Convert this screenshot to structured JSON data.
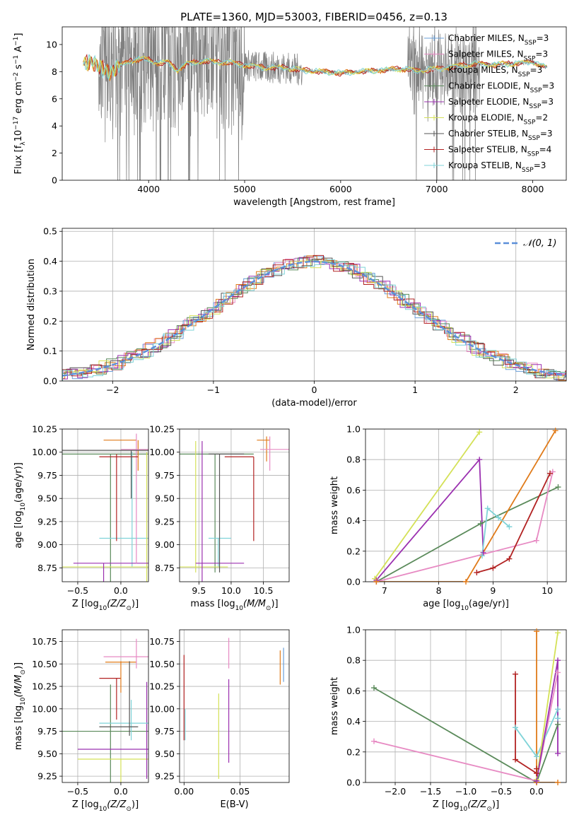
{
  "figure_title": "PLATE=1360, MJD=53003, FIBERID=0456, z=0.13",
  "colors": {
    "Chabrier MILES": "#6a9fd8",
    "Salpeter MILES": "#e78ac3",
    "Kroupa MILES": "#c0c0c0",
    "Chabrier ELODIE": "#5a8a5a",
    "Salpeter ELODIE": "#9b30b0",
    "Kroupa ELODIE": "#d4e157",
    "Chabrier STELIB": "#555555",
    "Salpeter STELIB": "#b22222",
    "Kroupa STELIB": "#7fd3d8",
    "orange": "#e07b1a",
    "data": "#808080",
    "normal": "#5b8fd9"
  },
  "chart_data": [
    {
      "id": "spectrum",
      "type": "line",
      "title": "PLATE=1360, MJD=53003, FIBERID=0456, z=0.13",
      "xlabel": "wavelength [Angstrom, rest frame]",
      "ylabel_parts": [
        "Flux [f",
        "λ",
        "10",
        "−17",
        " erg cm",
        "−2",
        " s",
        "−1",
        " A",
        "−1",
        "]"
      ],
      "xlim": [
        3100,
        8350
      ],
      "ylim": [
        0,
        11.3
      ],
      "xticks": [
        4000,
        5000,
        6000,
        7000,
        8000
      ],
      "yticks": [
        0,
        2,
        4,
        6,
        8,
        10
      ],
      "legend_position": "top-right",
      "legend": [
        {
          "label": "Chabrier MILES, N",
          "sub": "SSP",
          "eq": "=3",
          "color_key": "Chabrier MILES"
        },
        {
          "label": "Salpeter MILES, N",
          "sub": "SSP",
          "eq": "=3",
          "color_key": "Salpeter MILES"
        },
        {
          "label": "Kroupa MILES, N",
          "sub": "SSP",
          "eq": "=3",
          "color_key": "Kroupa MILES"
        },
        {
          "label": "Chabrier ELODIE, N",
          "sub": "SSP",
          "eq": "=3",
          "color_key": "Chabrier ELODIE"
        },
        {
          "label": "Salpeter ELODIE, N",
          "sub": "SSP",
          "eq": "=3",
          "color_key": "Salpeter ELODIE"
        },
        {
          "label": "Kroupa ELODIE, N",
          "sub": "SSP",
          "eq": "=2",
          "color_key": "Kroupa ELODIE"
        },
        {
          "label": "Chabrier STELIB, N",
          "sub": "SSP",
          "eq": "=3",
          "color_key": "Chabrier STELIB"
        },
        {
          "label": "Salpeter STELIB, N",
          "sub": "SSP",
          "eq": "=4",
          "color_key": "Salpeter STELIB"
        },
        {
          "label": "Kroupa STELIB, N",
          "sub": "SSP",
          "eq": "=3",
          "color_key": "Kroupa STELIB"
        }
      ],
      "continuum_knots": [
        [
          3320,
          8.6
        ],
        [
          3400,
          8.8
        ],
        [
          3500,
          8.2
        ],
        [
          3600,
          8.0
        ],
        [
          3700,
          8.4
        ],
        [
          3800,
          8.8
        ],
        [
          3900,
          8.9
        ],
        [
          4000,
          8.9
        ],
        [
          4100,
          8.6
        ],
        [
          4200,
          8.7
        ],
        [
          4300,
          8.1
        ],
        [
          4400,
          8.6
        ],
        [
          4500,
          8.7
        ],
        [
          4600,
          8.8
        ],
        [
          4700,
          8.7
        ],
        [
          4800,
          8.7
        ],
        [
          4900,
          8.6
        ],
        [
          5000,
          8.5
        ],
        [
          5200,
          8.3
        ],
        [
          5400,
          8.3
        ],
        [
          5600,
          8.1
        ],
        [
          5800,
          8.0
        ],
        [
          6000,
          7.9
        ],
        [
          6200,
          8.0
        ],
        [
          6400,
          8.1
        ],
        [
          6600,
          8.2
        ],
        [
          6800,
          8.1
        ],
        [
          7000,
          8.2
        ],
        [
          7200,
          8.4
        ],
        [
          7400,
          8.6
        ],
        [
          7600,
          8.5
        ],
        [
          7800,
          8.6
        ],
        [
          8000,
          8.7
        ],
        [
          8150,
          8.3
        ]
      ]
    },
    {
      "id": "residuals",
      "type": "line",
      "xlabel": "(data-model)/error",
      "ylabel": "Normed distribution",
      "xlim": [
        -2.5,
        2.5
      ],
      "ylim": [
        0,
        0.51
      ],
      "xticks": [
        -2,
        -1,
        0,
        1,
        2
      ],
      "yticks": [
        0.0,
        0.1,
        0.2,
        0.3,
        0.4,
        0.5
      ],
      "grid": true,
      "legend_position": "top-right",
      "legend_label": "𝒩(0, 1)"
    },
    {
      "id": "age-vs-Z",
      "type": "scatter",
      "xlabel_parts": [
        "Z [log",
        "10",
        "(Z/Z",
        "⊙",
        ")]"
      ],
      "ylabel_parts": [
        "age  [log",
        "10",
        "(age/yr)]"
      ],
      "xlim": [
        -0.68,
        0.32
      ],
      "ylim": [
        8.6,
        10.25
      ],
      "xticks": [
        -0.5,
        0.0
      ],
      "yticks": [
        8.75,
        9.0,
        9.25,
        9.5,
        9.75,
        10.0,
        10.25
      ],
      "grid": true
    },
    {
      "id": "age-vs-mass",
      "type": "scatter",
      "xlabel_parts": [
        "mass [log",
        "10",
        "(M/M",
        "⊙",
        ")]"
      ],
      "xlim": [
        9.2,
        10.9
      ],
      "ylim": [
        8.6,
        10.25
      ],
      "xticks": [
        9.5,
        10.0,
        10.5
      ],
      "yticks": [
        8.75,
        9.0,
        9.25,
        9.5,
        9.75,
        10.0,
        10.25
      ],
      "grid": true
    },
    {
      "id": "weight-vs-age",
      "type": "line",
      "xlabel_parts": [
        "age  [log",
        "10",
        "(age/yr)]"
      ],
      "ylabel": "mass weight",
      "xlim": [
        6.65,
        10.35
      ],
      "ylim": [
        0,
        1.0
      ],
      "xticks": [
        7,
        8,
        9,
        10
      ],
      "yticks": [
        0.0,
        0.2,
        0.4,
        0.6,
        0.8,
        1.0
      ],
      "grid": true,
      "series": [
        {
          "color_key": "Kroupa ELODIE",
          "x": [
            6.82,
            8.75
          ],
          "y": [
            0.02,
            0.98
          ]
        },
        {
          "color_key": "Salpeter ELODIE",
          "x": [
            6.85,
            8.75,
            8.82
          ],
          "y": [
            0.01,
            0.8,
            0.19
          ]
        },
        {
          "color_key": "Chabrier ELODIE",
          "x": [
            6.85,
            8.77,
            10.2
          ],
          "y": [
            0.0,
            0.38,
            0.62
          ]
        },
        {
          "color_key": "Salpeter MILES",
          "x": [
            6.85,
            9.8,
            10.1
          ],
          "y": [
            0.0,
            0.27,
            0.72
          ]
        },
        {
          "color_key": "orange",
          "x": [
            6.85,
            8.5,
            10.15
          ],
          "y": [
            0.0,
            0.0,
            0.99
          ]
        },
        {
          "color_key": "Salpeter STELIB",
          "x": [
            8.7,
            9.0,
            9.3,
            10.05
          ],
          "y": [
            0.06,
            0.09,
            0.15,
            0.71
          ]
        },
        {
          "color_key": "Kroupa STELIB",
          "x": [
            8.8,
            8.9,
            9.1,
            9.3
          ],
          "y": [
            0.17,
            0.48,
            0.42,
            0.36
          ]
        }
      ]
    },
    {
      "id": "mass-vs-Z",
      "type": "scatter",
      "xlabel_parts": [
        "Z [log",
        "10",
        "(Z/Z",
        "⊙",
        ")]"
      ],
      "ylabel_parts": [
        "mass [log",
        "10",
        "(M/M",
        "⊙",
        ")]"
      ],
      "xlim": [
        -0.68,
        0.32
      ],
      "ylim": [
        9.18,
        10.88
      ],
      "xticks": [
        -0.5,
        0.0
      ],
      "yticks": [
        9.25,
        9.5,
        9.75,
        10.0,
        10.25,
        10.5,
        10.75
      ],
      "grid": true
    },
    {
      "id": "mass-vs-ebv",
      "type": "scatter",
      "xlabel": "E(B-V)",
      "xlim": [
        -0.004,
        0.094
      ],
      "ylim": [
        9.18,
        10.88
      ],
      "xticks": [
        0.0,
        0.05
      ],
      "yticks": [
        9.25,
        9.5,
        9.75,
        10.0,
        10.25,
        10.5,
        10.75
      ],
      "grid": true
    },
    {
      "id": "weight-vs-Z",
      "type": "line",
      "xlabel_parts": [
        "Z [log",
        "10",
        "(Z/Z",
        "⊙",
        ")]"
      ],
      "ylabel": "mass weight",
      "xlim": [
        -2.42,
        0.42
      ],
      "ylim": [
        0,
        1.0
      ],
      "xticks": [
        -2.0,
        -1.5,
        -1.0,
        -0.5,
        0.0
      ],
      "yticks": [
        0.0,
        0.2,
        0.4,
        0.6,
        0.8,
        1.0
      ],
      "grid": true,
      "series": [
        {
          "color_key": "Chabrier ELODIE",
          "x": [
            -2.3,
            0.0,
            0.3
          ],
          "y": [
            0.62,
            0.0,
            0.38
          ]
        },
        {
          "color_key": "Salpeter MILES",
          "x": [
            -2.3,
            0.0,
            0.3
          ],
          "y": [
            0.27,
            0.01,
            0.72
          ]
        },
        {
          "color_key": "Salpeter STELIB",
          "x": [
            -0.3,
            -0.3,
            0.0,
            0.0
          ],
          "y": [
            0.71,
            0.15,
            0.06,
            0.09
          ]
        },
        {
          "color_key": "Kroupa STELIB",
          "x": [
            -0.3,
            0.0,
            0.3,
            0.3
          ],
          "y": [
            0.36,
            0.17,
            0.48,
            0.42
          ]
        },
        {
          "color_key": "orange",
          "x": [
            0.0,
            0.0,
            0.3
          ],
          "y": [
            0.99,
            0.0,
            0.0
          ]
        },
        {
          "color_key": "Kroupa ELODIE",
          "x": [
            0.0,
            0.3
          ],
          "y": [
            0.02,
            0.98
          ]
        },
        {
          "color_key": "Salpeter ELODIE",
          "x": [
            0.0,
            0.3,
            0.3
          ],
          "y": [
            0.01,
            0.8,
            0.19
          ]
        }
      ]
    }
  ]
}
